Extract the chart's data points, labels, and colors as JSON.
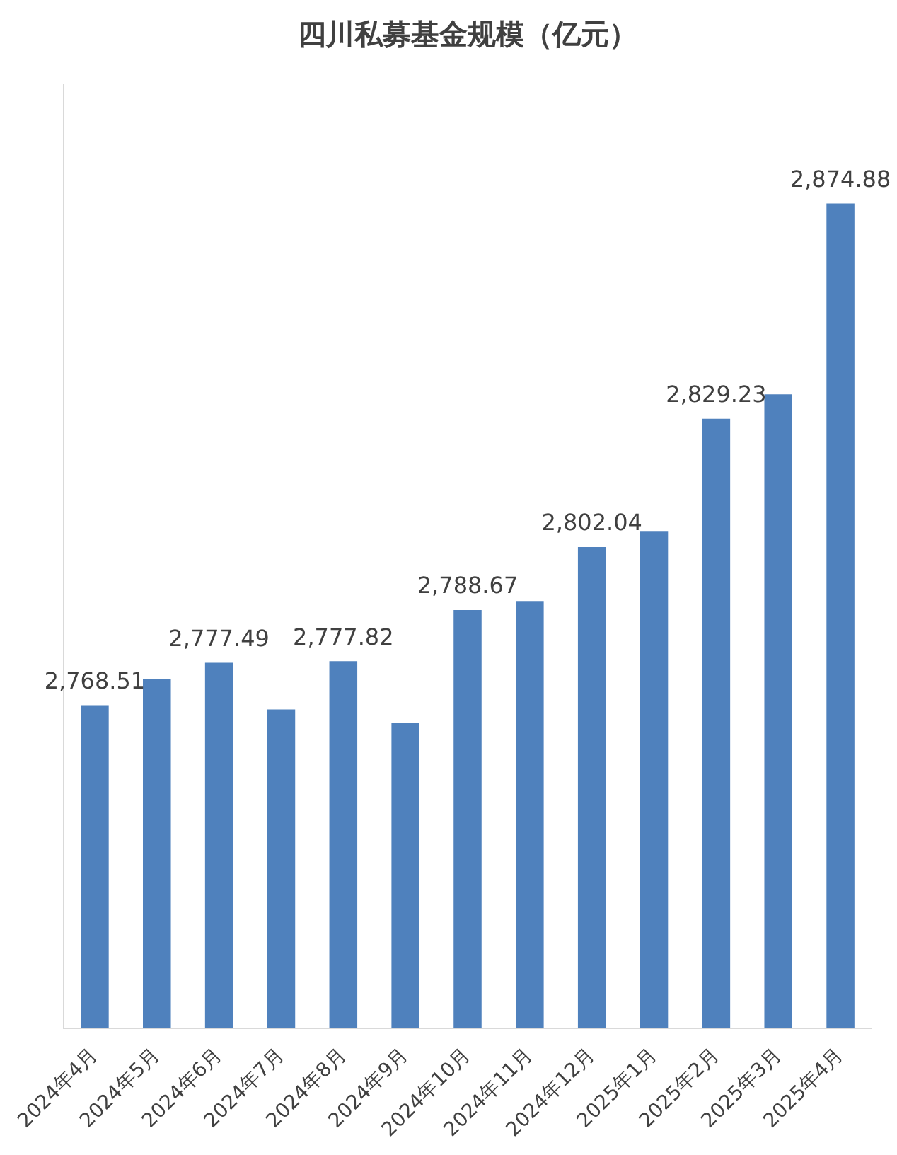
{
  "chart_data": {
    "type": "bar",
    "title": "四川私募基金规模（亿元）",
    "categories": [
      "2024年4月",
      "2024年5月",
      "2024年6月",
      "2024年7月",
      "2024年8月",
      "2024年9月",
      "2024年10月",
      "2024年11月",
      "2024年12月",
      "2025年1月",
      "2025年2月",
      "2025年3月",
      "2025年4月"
    ],
    "values": [
      2768.51,
      2774.0,
      2777.49,
      2767.6,
      2777.82,
      2764.8,
      2788.67,
      2790.6,
      2802.04,
      2805.3,
      2829.23,
      2834.4,
      2874.88
    ],
    "value_labels": [
      "2,768.51",
      null,
      "2,777.49",
      null,
      "2,777.82",
      null,
      "2,788.67",
      null,
      "2,802.04",
      null,
      "2,829.23",
      null,
      "2,874.88"
    ],
    "color": "#4f81bd",
    "ylim": [
      2700,
      2900
    ],
    "tick_labels": "x"
  }
}
